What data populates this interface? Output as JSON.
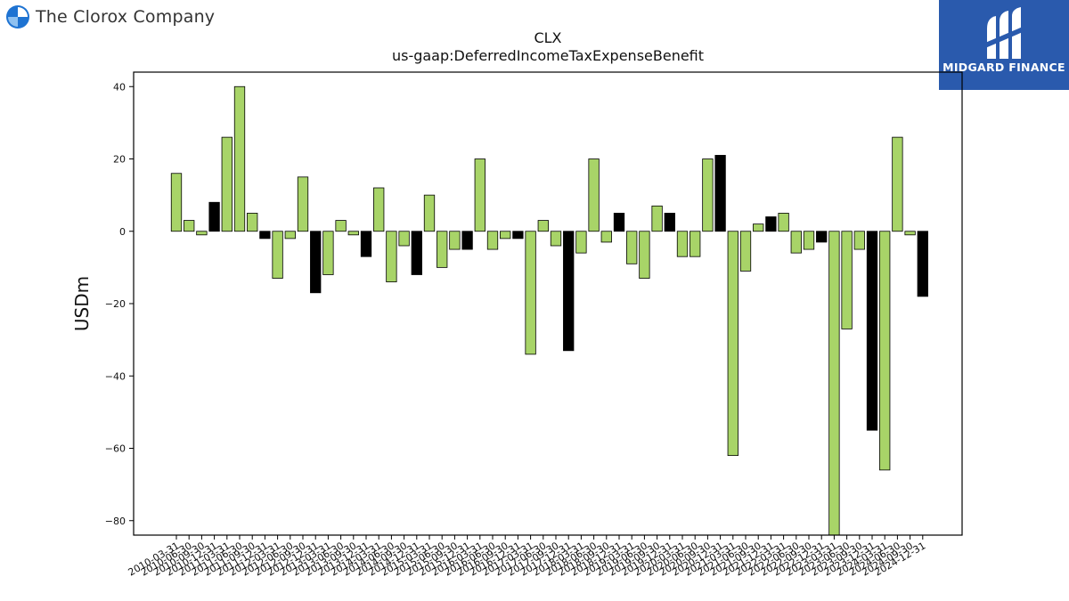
{
  "header": {
    "company_name": "The Clorox Company",
    "brand_logo_icon": "clorox-logo-icon",
    "badge_icon": "midgard-finance-logo-icon",
    "badge_text": "MIDGARD FINANCE",
    "badge_color": "#2a5aad"
  },
  "chart_data": {
    "type": "bar",
    "title": "CLX",
    "subtitle": "us-gaap:DeferredIncomeTaxExpenseBenefit",
    "xlabel": "",
    "ylabel": "USDm",
    "ylim": [
      -84,
      44
    ],
    "yticks": [
      40,
      20,
      0,
      -20,
      -40,
      -60,
      -80
    ],
    "grid": false,
    "colors": {
      "normal": "#a8d468",
      "highlight": "#000000",
      "edge": "#000000"
    },
    "categories": [
      "2010-03-31",
      "2010-06-30",
      "2010-09-30",
      "2010-12-31",
      "2011-03-31",
      "2011-06-30",
      "2011-09-30",
      "2011-12-31",
      "2012-03-31",
      "2012-06-30",
      "2012-09-30",
      "2012-12-31",
      "2013-03-31",
      "2013-06-30",
      "2013-09-30",
      "2013-12-31",
      "2014-03-31",
      "2014-06-30",
      "2014-09-30",
      "2014-12-31",
      "2015-03-31",
      "2015-06-30",
      "2015-09-30",
      "2015-12-31",
      "2016-03-31",
      "2016-06-30",
      "2016-09-30",
      "2016-12-31",
      "2017-03-31",
      "2017-06-30",
      "2017-09-30",
      "2017-12-31",
      "2018-03-31",
      "2018-06-30",
      "2018-09-30",
      "2018-12-31",
      "2019-03-31",
      "2019-06-30",
      "2019-09-30",
      "2019-12-31",
      "2020-03-31",
      "2020-06-30",
      "2020-09-30",
      "2020-12-31",
      "2021-03-31",
      "2021-06-30",
      "2021-09-30",
      "2021-12-31",
      "2022-03-31",
      "2022-06-30",
      "2022-09-30",
      "2022-12-31",
      "2023-03-31",
      "2023-06-30",
      "2023-09-30",
      "2023-12-31",
      "2024-03-31",
      "2024-06-30",
      "2024-09-30",
      "2024-12-31"
    ],
    "values": [
      16,
      3,
      -1,
      8,
      26,
      40,
      5,
      -2,
      -13,
      -2,
      15,
      -17,
      -12,
      3,
      -1,
      -7,
      12,
      -14,
      -4,
      -12,
      10,
      -10,
      -5,
      -5,
      20,
      -5,
      -2,
      -2,
      -34,
      3,
      -4,
      -33,
      -6,
      20,
      -3,
      5,
      -9,
      -13,
      7,
      5,
      -7,
      -7,
      20,
      21,
      -62,
      -11,
      2,
      4,
      5,
      -6,
      -5,
      -3,
      -88,
      -27,
      -5,
      -55,
      -66,
      26,
      -1,
      -18
    ],
    "highlight": [
      false,
      false,
      false,
      true,
      false,
      false,
      false,
      true,
      false,
      false,
      false,
      true,
      false,
      false,
      false,
      true,
      false,
      false,
      false,
      true,
      false,
      false,
      false,
      true,
      false,
      false,
      false,
      true,
      false,
      false,
      false,
      true,
      false,
      false,
      false,
      true,
      false,
      false,
      false,
      true,
      false,
      false,
      false,
      true,
      false,
      false,
      false,
      true,
      false,
      false,
      false,
      true,
      false,
      false,
      false,
      true,
      false,
      false,
      false,
      true
    ]
  }
}
